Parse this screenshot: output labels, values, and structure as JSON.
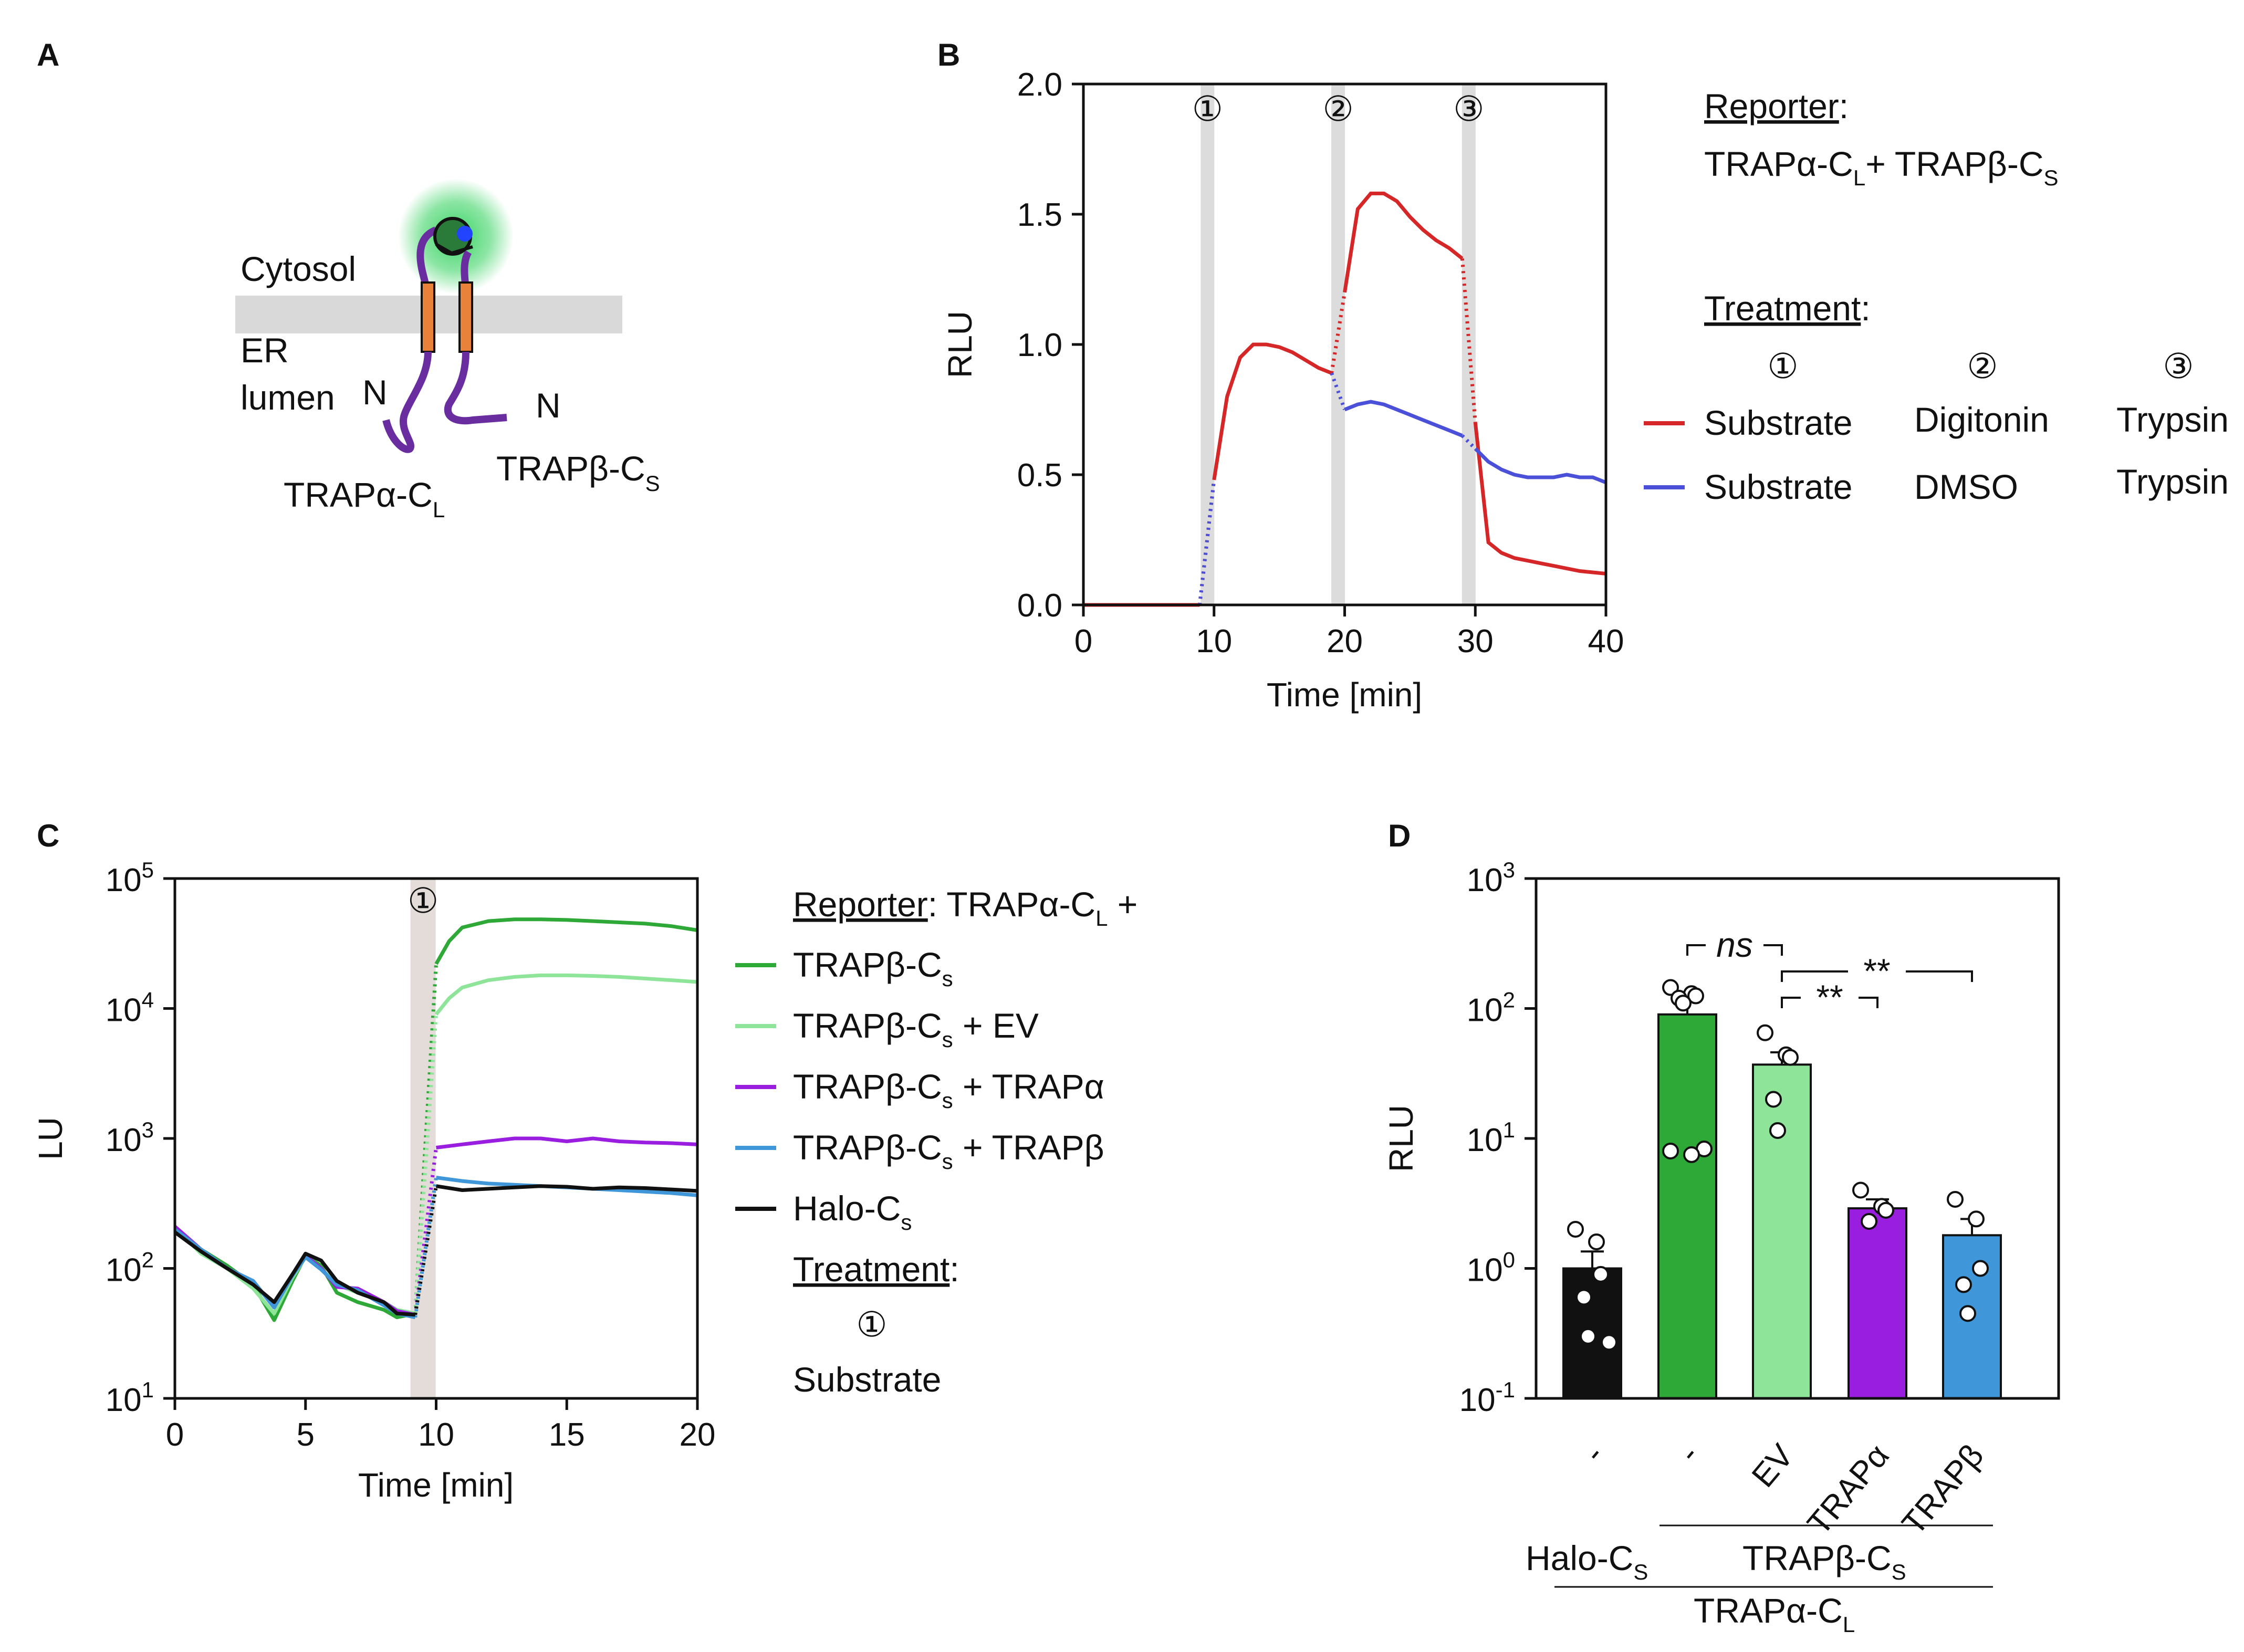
{
  "panels": {
    "a": "A",
    "b": "B",
    "c": "C",
    "d": "D"
  },
  "colors": {
    "red": "#d62728",
    "blue": "#4a50d8",
    "green": "#2ea836",
    "lightgreen": "#8ee59a",
    "purple": "#9a1ee0",
    "skyblue": "#3f96d8",
    "black": "#111111",
    "membrane": "#d9d9d9",
    "tm": "#e8823a",
    "protein": "#6a2da0"
  },
  "panel_a": {
    "cytosol": "Cytosol",
    "er": "ER",
    "lumen": "lumen",
    "n1": "N",
    "n2": "N",
    "trapa_label": "TRAPα-C",
    "trapa_sub": "L",
    "trapb_label": "TRAPβ-C",
    "trapb_sub": "S"
  },
  "panel_b": {
    "markers": [
      "①",
      "②",
      "③"
    ],
    "reporter_title": "Reporter",
    "reporter_colon": ":",
    "reporter_line_1": "TRAPα-C",
    "reporter_sub_1": "L",
    "reporter_plus": "+ TRAPβ-C",
    "reporter_sub_2": "S",
    "treatment_title": "Treatment",
    "treatment_colon": ":",
    "step_symbols": [
      "①",
      "②",
      "③"
    ],
    "rows": [
      {
        "series": "Substrate",
        "step2": "Digitonin",
        "step3": "Trypsin"
      },
      {
        "series": "Substrate",
        "step2": "DMSO",
        "step3": "Trypsin"
      }
    ]
  },
  "panel_c": {
    "marker": "①",
    "reporter_title": "Reporter",
    "reporter_text": ": TRAPα-C",
    "reporter_sub": "L",
    "reporter_plus": " +",
    "legend": [
      {
        "main": "TRAPβ-C",
        "sub": "s",
        "rest": ""
      },
      {
        "main": "TRAPβ-C",
        "sub": "s",
        "rest": " + EV"
      },
      {
        "main": "TRAPβ-C",
        "sub": "s",
        "rest": " + TRAPα"
      },
      {
        "main": "TRAPβ-C",
        "sub": "s",
        "rest": " + TRAPβ"
      },
      {
        "main": "Halo-C",
        "sub": "s",
        "rest": ""
      }
    ],
    "treatment_title": "Treatment",
    "treatment_colon": ":",
    "treatment_symbol": "①",
    "treatment_value": "Substrate"
  },
  "panel_d": {
    "sig_ns": "ns",
    "sig_a": "**",
    "sig_b": "**",
    "group_1_main": "Halo-C",
    "group_1_sub": "S",
    "group_2_main": "TRAPβ-C",
    "group_2_sub": "S",
    "group_3_main": "TRAPα-C",
    "group_3_sub": "L"
  },
  "chart_data": [
    {
      "id": "B",
      "type": "line",
      "xlabel": "Time [min]",
      "ylabel": "RLU",
      "xlim": [
        0,
        40
      ],
      "ylim": [
        0,
        2.0
      ],
      "xticks": [
        0,
        10,
        20,
        30,
        40
      ],
      "yticks": [
        0.0,
        0.5,
        1.0,
        1.5,
        2.0
      ],
      "ytick_labels": [
        "0.0",
        "0.5",
        "1.0",
        "1.5",
        "2.0"
      ],
      "treatment_windows_min": [
        9.5,
        19.5,
        29.5
      ],
      "series": [
        {
          "name": "Substrate / Digitonin / Trypsin",
          "color": "red",
          "x": [
            0,
            8.9,
            10,
            11,
            12,
            13,
            14,
            15,
            16,
            17,
            18,
            19,
            20,
            21,
            22,
            23,
            24,
            25,
            26,
            27,
            28,
            29,
            30,
            31,
            32,
            33,
            34,
            35,
            36,
            37,
            38,
            39,
            40
          ],
          "y": [
            0,
            0,
            0.48,
            0.8,
            0.95,
            1.0,
            1.0,
            0.99,
            0.97,
            0.94,
            0.91,
            0.89,
            1.2,
            1.52,
            1.58,
            1.58,
            1.55,
            1.49,
            1.44,
            1.4,
            1.37,
            1.33,
            0.7,
            0.24,
            0.2,
            0.18,
            0.17,
            0.16,
            0.15,
            0.14,
            0.13,
            0.125,
            0.12
          ]
        },
        {
          "name": "Substrate / DMSO / Trypsin",
          "color": "blue",
          "x": [
            8.9,
            10,
            19,
            20,
            21,
            22,
            23,
            24,
            25,
            26,
            27,
            28,
            29,
            30,
            31,
            32,
            33,
            34,
            35,
            36,
            37,
            38,
            39,
            40
          ],
          "y": [
            0,
            0.48,
            0.89,
            0.75,
            0.77,
            0.78,
            0.77,
            0.75,
            0.73,
            0.71,
            0.69,
            0.67,
            0.65,
            0.6,
            0.55,
            0.52,
            0.5,
            0.49,
            0.49,
            0.49,
            0.5,
            0.49,
            0.49,
            0.47
          ]
        }
      ]
    },
    {
      "id": "C",
      "type": "line",
      "xlabel": "Time [min]",
      "ylabel": "LU",
      "yscale": "log",
      "xlim": [
        0,
        20
      ],
      "ylim": [
        10,
        100000
      ],
      "xticks": [
        0,
        5,
        10,
        15,
        20
      ],
      "yticks": [
        10,
        100,
        1000,
        10000,
        100000
      ],
      "ytick_base": "10",
      "ytick_exponents": [
        "1",
        "2",
        "3",
        "4",
        "5"
      ],
      "treatment_window_min": 9.5,
      "series": [
        {
          "name": "TRAPβ-Cs",
          "color": "green",
          "x": [
            0,
            1,
            2,
            3,
            3.8,
            4.5,
            5,
            5.6,
            6.2,
            7,
            8,
            8.5,
            9.2,
            10,
            10.5,
            11,
            12,
            13,
            14,
            15,
            16,
            17,
            18,
            19,
            20
          ],
          "y": [
            200,
            140,
            105,
            75,
            40,
            80,
            125,
            105,
            65,
            55,
            48,
            42,
            45,
            22000,
            33000,
            42000,
            47000,
            48500,
            48500,
            48000,
            47000,
            46000,
            45000,
            43000,
            40000
          ]
        },
        {
          "name": "TRAPβ-Cs + EV",
          "color": "lightgreen",
          "x": [
            0,
            1,
            2,
            3,
            3.8,
            4.5,
            5,
            5.6,
            6.2,
            7,
            8,
            8.5,
            9.2,
            10,
            10.5,
            11,
            12,
            13,
            14,
            15,
            16,
            17,
            18,
            19,
            20
          ],
          "y": [
            205,
            130,
            100,
            70,
            45,
            85,
            122,
            100,
            75,
            65,
            55,
            48,
            45,
            9000,
            12000,
            14500,
            16500,
            17500,
            18000,
            18000,
            17800,
            17500,
            17000,
            16500,
            16000
          ]
        },
        {
          "name": "TRAPβ-Cs + TRAPα",
          "color": "purple",
          "x": [
            0,
            1,
            2,
            3,
            3.8,
            4.5,
            5,
            5.6,
            6.2,
            7,
            8,
            8.5,
            9.2,
            10,
            11,
            12,
            13,
            14,
            15,
            16,
            17,
            18,
            19,
            20
          ],
          "y": [
            210,
            140,
            100,
            80,
            50,
            90,
            125,
            100,
            72,
            70,
            55,
            47,
            44,
            850,
            900,
            950,
            1000,
            1000,
            950,
            1000,
            950,
            930,
            920,
            900
          ]
        },
        {
          "name": "TRAPβ-Cs + TRAPβ",
          "color": "skyblue",
          "x": [
            0,
            1,
            2,
            3,
            3.8,
            4.5,
            5,
            5.6,
            6.2,
            7,
            8,
            8.5,
            9.2,
            10,
            11,
            12,
            13,
            14,
            15,
            16,
            17,
            18,
            19,
            20
          ],
          "y": [
            200,
            140,
            100,
            80,
            50,
            88,
            122,
            98,
            75,
            68,
            52,
            45,
            42,
            500,
            470,
            450,
            440,
            430,
            420,
            410,
            400,
            390,
            380,
            365
          ]
        },
        {
          "name": "Halo-Cs",
          "color": "black",
          "x": [
            0,
            1,
            2,
            3,
            3.8,
            4.5,
            5,
            5.6,
            6.2,
            7,
            8,
            8.5,
            9.2,
            10,
            11,
            12,
            13,
            14,
            15,
            16,
            17,
            18,
            19,
            20
          ],
          "y": [
            190,
            135,
            100,
            75,
            55,
            90,
            130,
            115,
            80,
            65,
            55,
            45,
            44,
            430,
            400,
            410,
            420,
            430,
            425,
            410,
            420,
            415,
            405,
            395
          ]
        }
      ]
    },
    {
      "id": "D",
      "type": "bar",
      "ylabel": "RLU",
      "yscale": "log",
      "ylim": [
        0.1,
        1000
      ],
      "yticks": [
        0.1,
        1,
        10,
        100,
        1000
      ],
      "ytick_base": "10",
      "ytick_exponents": [
        "-1",
        "0",
        "1",
        "2",
        "3"
      ],
      "categories": [
        "-",
        "-",
        "EV",
        "TRAPα",
        "TRAPβ"
      ],
      "bar_colors": [
        "black",
        "green",
        "lightgreen",
        "purple",
        "skyblue"
      ],
      "values": [
        1.0,
        90,
        37,
        2.9,
        1.8
      ],
      "sem": [
        0.35,
        25,
        9,
        0.5,
        0.6
      ],
      "points": [
        [
          2.0,
          1.6,
          0.9,
          0.6,
          0.3,
          0.27
        ],
        [
          145,
          130,
          125,
          120,
          110,
          8.3,
          8.0,
          7.5
        ],
        [
          65,
          44,
          42,
          20,
          11.5
        ],
        [
          4.0,
          3.0,
          2.8,
          2.3
        ],
        [
          3.4,
          2.4,
          1.0,
          0.75,
          0.45
        ]
      ],
      "significance": [
        {
          "from": 1,
          "to": 2,
          "label": "ns"
        },
        {
          "from": 2,
          "to": 3,
          "label": "**"
        },
        {
          "from": 2,
          "to": 4,
          "label": "**"
        }
      ]
    }
  ]
}
